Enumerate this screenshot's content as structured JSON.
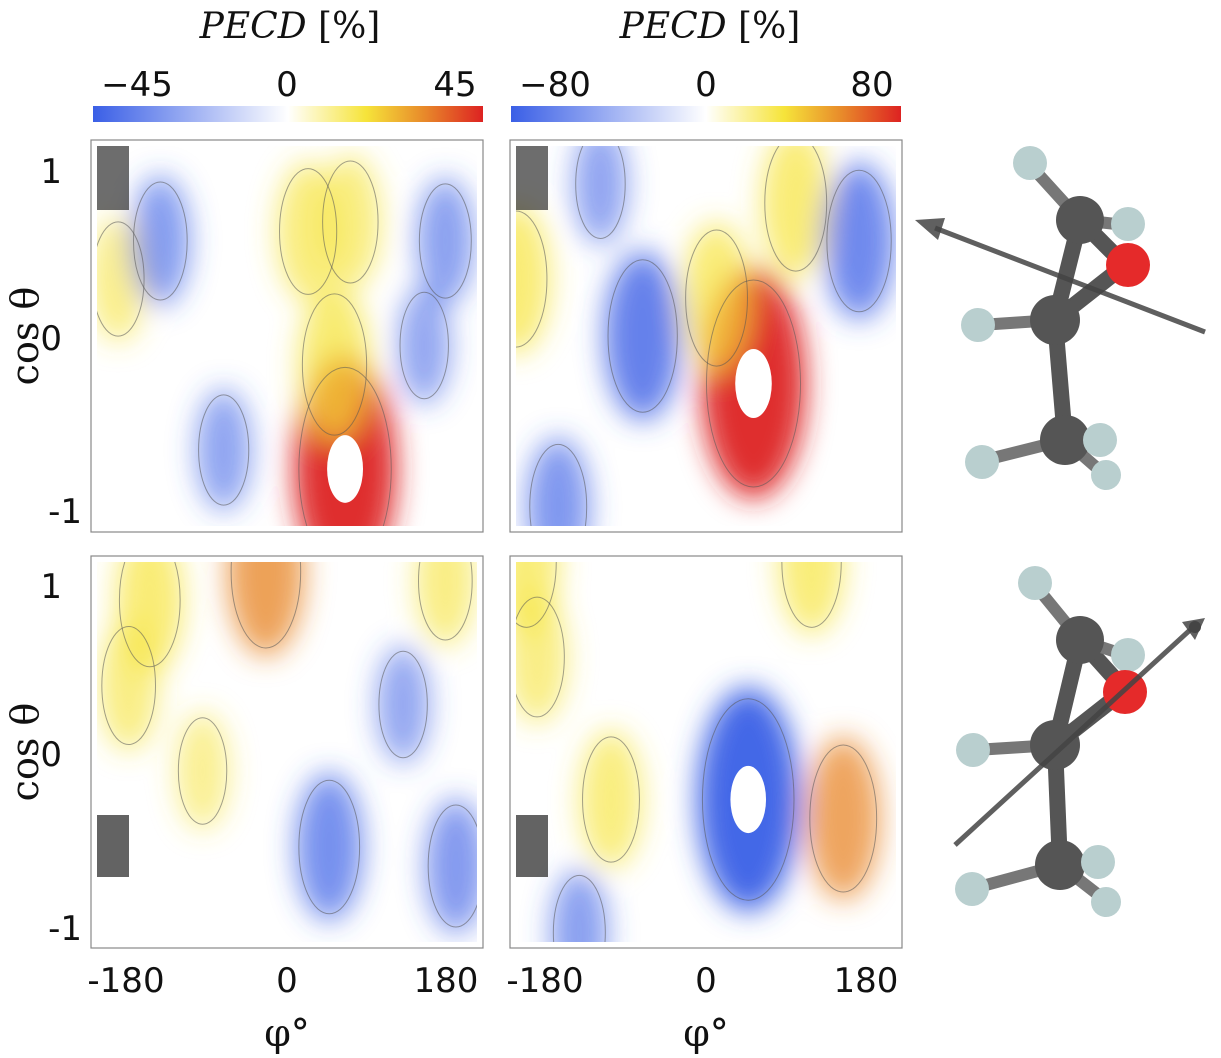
{
  "colors": {
    "negative": "#3a5fe6",
    "zero": "#ffffff",
    "mid_positive": "#f6e43a",
    "high_positive": "#e8892a",
    "max_positive": "#dd2222",
    "contour": "#555555",
    "mask": "#3c3c3c",
    "carbon": "#555555",
    "hydrogen": "#b9cfcf",
    "oxygen": "#e52a2a"
  },
  "colorbars": [
    {
      "title": "PECD",
      "unit": "[%]",
      "ticks": [
        "−45",
        "0",
        "45"
      ],
      "range": [
        -45,
        45
      ]
    },
    {
      "title": "PECD",
      "unit": "[%]",
      "ticks": [
        "−80",
        "0",
        "80"
      ],
      "range": [
        -80,
        80
      ]
    }
  ],
  "axes": {
    "ylabel": "cos θ",
    "xlabel": "φ°",
    "yticks": [
      "1",
      "0",
      "-1"
    ],
    "xticks": [
      "-180",
      "0",
      "180"
    ]
  },
  "molecule_icons": [
    "propylene-oxide-ball-stick-icon",
    "propylene-oxide-ball-stick-icon"
  ],
  "chart_data": [
    {
      "type": "heatmap",
      "panel": "top-left",
      "x": [
        -180,
        180
      ],
      "y": [
        -1,
        1
      ],
      "zrange": [
        -45,
        45
      ],
      "blobs": [
        {
          "x": 55,
          "y": -0.7,
          "value": 60
        },
        {
          "x": 45,
          "y": -0.15,
          "value": 28
        },
        {
          "x": 20,
          "y": 0.55,
          "value": 20
        },
        {
          "x": 60,
          "y": 0.6,
          "value": 18
        },
        {
          "x": -160,
          "y": 0.3,
          "value": 14
        },
        {
          "x": -120,
          "y": 0.5,
          "value": -16
        },
        {
          "x": 150,
          "y": 0.5,
          "value": -14
        },
        {
          "x": -60,
          "y": -0.6,
          "value": -12
        },
        {
          "x": 130,
          "y": -0.05,
          "value": -10
        }
      ]
    },
    {
      "type": "heatmap",
      "panel": "top-right",
      "x": [
        -180,
        180
      ],
      "y": [
        -1,
        1
      ],
      "zrange": [
        -80,
        80
      ],
      "blobs": [
        {
          "x": 45,
          "y": -0.25,
          "value": 110
        },
        {
          "x": 10,
          "y": 0.2,
          "value": 45
        },
        {
          "x": 85,
          "y": 0.7,
          "value": 45
        },
        {
          "x": -180,
          "y": 0.3,
          "value": 45
        },
        {
          "x": -60,
          "y": 0.0,
          "value": -60
        },
        {
          "x": 145,
          "y": 0.5,
          "value": -50
        },
        {
          "x": -140,
          "y": -0.9,
          "value": -35
        },
        {
          "x": -100,
          "y": 0.8,
          "value": -20
        }
      ]
    },
    {
      "type": "heatmap",
      "panel": "bottom-left",
      "x": [
        -180,
        180
      ],
      "y": [
        -1,
        1
      ],
      "zrange": [
        -45,
        45
      ],
      "blobs": [
        {
          "x": -20,
          "y": 0.95,
          "value": 34
        },
        {
          "x": -130,
          "y": 0.8,
          "value": 24
        },
        {
          "x": 150,
          "y": 0.9,
          "value": 16
        },
        {
          "x": -150,
          "y": 0.35,
          "value": 16
        },
        {
          "x": -80,
          "y": -0.1,
          "value": 10
        },
        {
          "x": 40,
          "y": -0.5,
          "value": -24
        },
        {
          "x": 160,
          "y": -0.6,
          "value": -18
        },
        {
          "x": 110,
          "y": 0.25,
          "value": -10
        }
      ]
    },
    {
      "type": "heatmap",
      "panel": "bottom-right",
      "x": [
        -180,
        180
      ],
      "y": [
        -1,
        1
      ],
      "zrange": [
        -80,
        80
      ],
      "blobs": [
        {
          "x": 40,
          "y": -0.25,
          "value": -105
        },
        {
          "x": -90,
          "y": -0.25,
          "value": 35
        },
        {
          "x": -160,
          "y": 0.5,
          "value": 30
        },
        {
          "x": 130,
          "y": -0.35,
          "value": 55
        },
        {
          "x": 100,
          "y": 1.0,
          "value": 40
        },
        {
          "x": -170,
          "y": 1.0,
          "value": 40
        },
        {
          "x": -120,
          "y": -0.95,
          "value": -25
        }
      ]
    }
  ]
}
